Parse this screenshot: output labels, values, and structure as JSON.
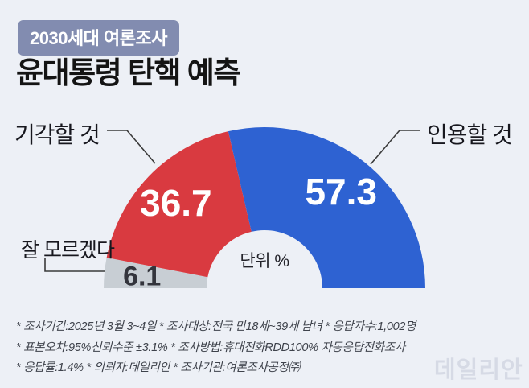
{
  "badge": {
    "label": "2030세대 여론조사"
  },
  "title": "윤대통령 탄핵 예측",
  "chart_data": {
    "type": "pie",
    "variant": "half-donut",
    "categories": [
      "잘 모르겠다",
      "기각할 것",
      "인용할 것"
    ],
    "values": [
      6.1,
      36.7,
      57.3
    ],
    "value_labels": [
      "6.1",
      "36.7",
      "57.3"
    ],
    "colors": [
      "#c8ced4",
      "#d93a40",
      "#2e62d2"
    ],
    "value_label_colors": [
      "#33343c",
      "#ffffff",
      "#ffffff"
    ],
    "value_label_sizes": [
      34,
      46,
      46
    ],
    "unit": "단위 %",
    "start_side": "left",
    "sweep_direction": "left-to-right over top",
    "legend_position": "callout-labels-with-leader-lines"
  },
  "footnotes": {
    "line1": "* 조사기간:2025년 3월 3~4일  * 조사대상:전국 만18세~39세 남녀  * 응답자수:1,002명",
    "line2": "* 표본오차:95%신뢰수준 ±3.1%  * 조사방법:휴대전화RDD100% 자동응답전화조사",
    "line3": "* 응답률:1.4%  * 의뢰자:데일리안  * 조사기관:여론조사공정㈜"
  },
  "watermark": "데일리안",
  "colors": {
    "background": "#edf0f6",
    "badge_background": "#828cb0",
    "segment_dontknow": "#c8ced4",
    "segment_reject": "#d93a40",
    "segment_uphold": "#2e62d2",
    "leader_line": "#3a3a3a",
    "footnote_text": "#3e424b",
    "watermark_text": "#d6dae5"
  }
}
